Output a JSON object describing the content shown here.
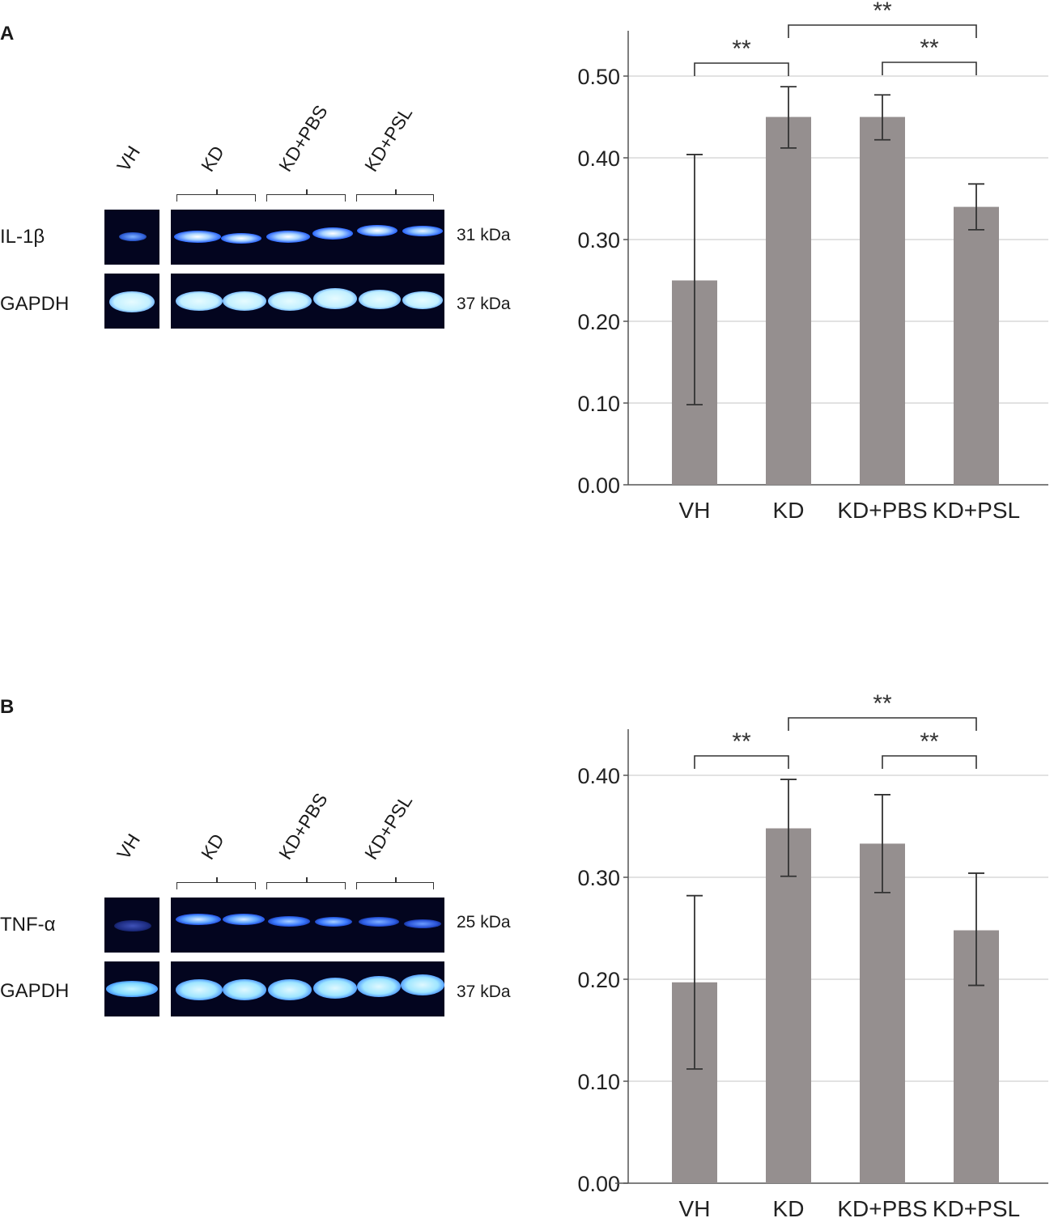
{
  "panels": [
    {
      "letter": "A",
      "blot": {
        "lanes": [
          "VH",
          "KD",
          "KD+PBS",
          "KD+PSL"
        ],
        "rows": [
          {
            "label": "IL-1β",
            "kda": "31 kDa"
          },
          {
            "label": "GAPDH",
            "kda": "37 kDa"
          }
        ]
      }
    },
    {
      "letter": "B",
      "blot": {
        "lanes": [
          "VH",
          "KD",
          "KD+PBS",
          "KD+PSL"
        ],
        "rows": [
          {
            "label": "TNF-α",
            "kda": "25 kDa"
          },
          {
            "label": "GAPDH",
            "kda": "37 kDa"
          }
        ]
      }
    }
  ],
  "chart_data": [
    {
      "type": "bar",
      "panel": "A",
      "categories": [
        "VH",
        "KD",
        "KD+PBS",
        "KD+PSL"
      ],
      "values": [
        0.25,
        0.45,
        0.45,
        0.34
      ],
      "error_low": [
        0.098,
        0.412,
        0.422,
        0.312
      ],
      "error_high": [
        0.404,
        0.487,
        0.477,
        0.368
      ],
      "ylim": [
        0,
        0.55
      ],
      "yticks": [
        "0.00",
        "0.10",
        "0.20",
        "0.30",
        "0.40",
        "0.50"
      ],
      "grid": true,
      "bar_color": "#958f8f",
      "significance": [
        {
          "from": "VH",
          "to": "KD",
          "label": "**"
        },
        {
          "from": "KD",
          "to": "KD+PSL",
          "label": "**"
        },
        {
          "from": "KD+PBS",
          "to": "KD+PSL",
          "label": "**"
        }
      ]
    },
    {
      "type": "bar",
      "panel": "B",
      "categories": [
        "VH",
        "KD",
        "KD+PBS",
        "KD+PSL"
      ],
      "values": [
        0.197,
        0.348,
        0.333,
        0.248
      ],
      "error_low": [
        0.112,
        0.301,
        0.285,
        0.194
      ],
      "error_high": [
        0.282,
        0.396,
        0.381,
        0.304
      ],
      "ylim": [
        0,
        0.4
      ],
      "yticks": [
        "0.00",
        "0.10",
        "0.20",
        "0.30",
        "0.40"
      ],
      "grid": true,
      "bar_color": "#958f8f",
      "significance": [
        {
          "from": "VH",
          "to": "KD",
          "label": "**"
        },
        {
          "from": "KD",
          "to": "KD+PSL",
          "label": "**"
        },
        {
          "from": "KD+PBS",
          "to": "KD+PSL",
          "label": "**"
        }
      ]
    }
  ]
}
